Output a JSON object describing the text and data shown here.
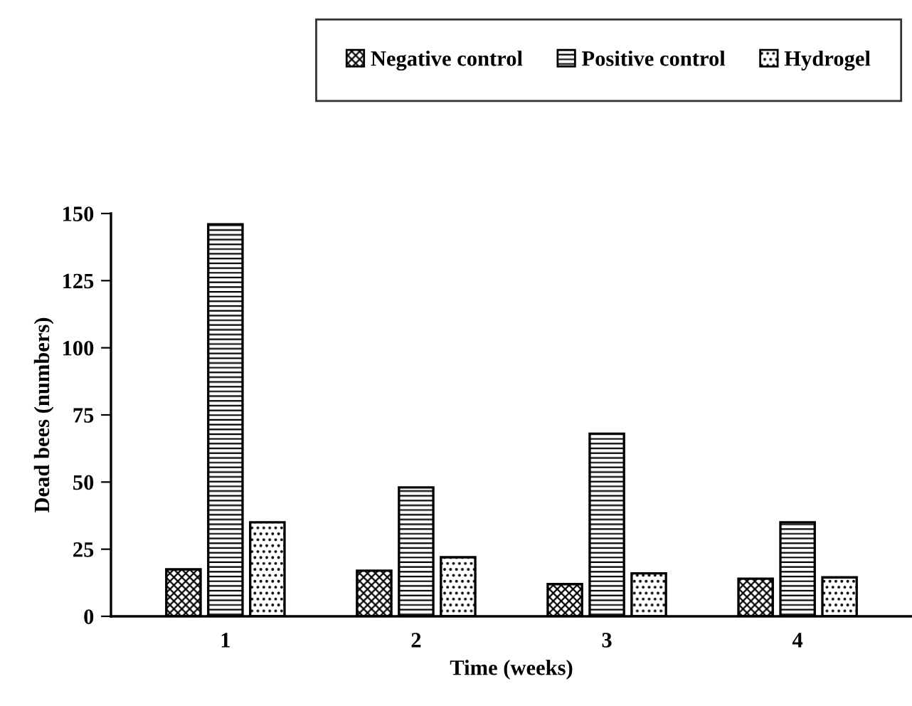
{
  "chart_data": {
    "type": "bar",
    "xlabel": "Time (weeks)",
    "ylabel": "Dead bees (numbers)",
    "categories": [
      "1",
      "2",
      "3",
      "4"
    ],
    "series": [
      {
        "name": "Negative control",
        "color": "#000000",
        "values": [
          17.5,
          17,
          12,
          14
        ]
      },
      {
        "name": "Positive control",
        "color": "#000000",
        "values": [
          146,
          48,
          68,
          35
        ]
      },
      {
        "name": "Hydrogel",
        "color": "#000000",
        "values": [
          35,
          22,
          16,
          14.5
        ]
      }
    ],
    "ylim": [
      0,
      150
    ],
    "yticks": [
      0,
      25,
      50,
      75,
      100,
      125,
      150
    ],
    "grid": false,
    "legend": "top right"
  }
}
